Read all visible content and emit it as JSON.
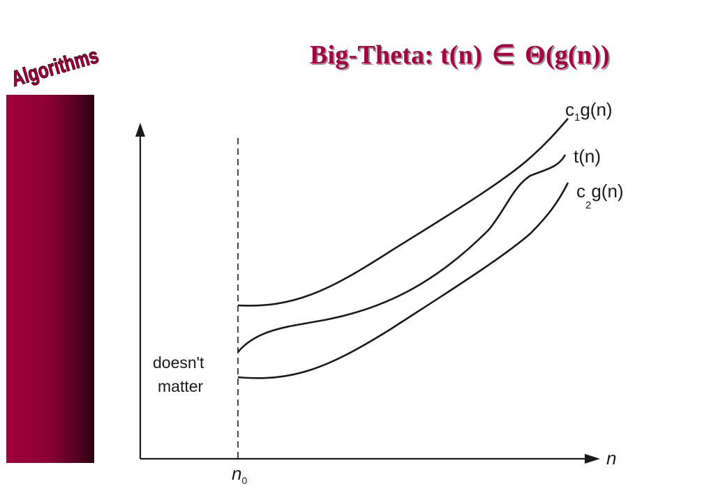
{
  "slide": {
    "logo_text": "Algorithms",
    "title_prefix": "Big-Theta: t(n)",
    "title_symbol": "∈",
    "title_suffix": "Θ(g(n))",
    "colors": {
      "accent": "#a50040",
      "sidebar_dark": "#2a0010",
      "line": "#1a1a1a"
    }
  },
  "diagram": {
    "labels": {
      "upper_curve": {
        "base": "c",
        "sub": "1",
        "rest": "g(n)"
      },
      "middle_curve": "t(n)",
      "lower_curve": {
        "base": "c",
        "sub": "2",
        "rest": "g(n)"
      },
      "region_line1": "doesn't",
      "region_line2": "matter",
      "x_axis": "n",
      "threshold": {
        "base": "n",
        "sub": "0"
      }
    }
  }
}
